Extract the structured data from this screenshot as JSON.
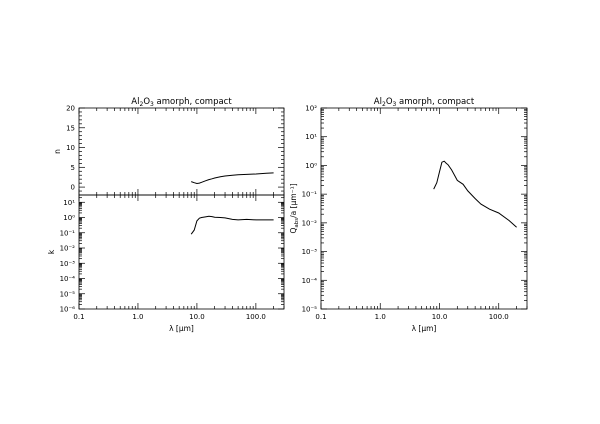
{
  "chart_data": [
    {
      "type": "line",
      "panel": "n",
      "title": "Al2O3 amorph, compact",
      "title_parts": {
        "pre": "Al",
        "sub1": "2",
        "mid": "O",
        "sub2": "3",
        "post": " amorph, compact"
      },
      "xlabel": "λ [μm]",
      "ylabel": "n",
      "xscale": "log",
      "yscale": "linear",
      "xlim": [
        0.1,
        300
      ],
      "ylim": [
        -2,
        20
      ],
      "xticks": [
        "0.1",
        "1.0",
        "10.0",
        "100.0"
      ],
      "yticks": [
        "0",
        "5",
        "10",
        "15",
        "20"
      ],
      "series": [
        {
          "x": [
            8,
            9,
            10,
            11,
            12,
            14,
            16,
            18,
            20,
            25,
            30,
            40,
            50,
            70,
            100,
            150,
            200
          ],
          "y": [
            1.4,
            1.1,
            0.9,
            1.0,
            1.2,
            1.6,
            1.9,
            2.1,
            2.3,
            2.6,
            2.8,
            3.0,
            3.1,
            3.2,
            3.3,
            3.5,
            3.6
          ]
        }
      ]
    },
    {
      "type": "line",
      "panel": "k",
      "xlabel": "λ [μm]",
      "ylabel": "k",
      "xscale": "log",
      "yscale": "log",
      "xlim": [
        0.1,
        300
      ],
      "ylim": [
        1e-06,
        30
      ],
      "xticks": [
        "0.1",
        "1.0",
        "10.0",
        "100.0"
      ],
      "yticks": [
        "10¹",
        "10⁰",
        "10⁻¹",
        "10⁻²",
        "10⁻³",
        "10⁻⁴",
        "10⁻⁵",
        "10⁻⁶"
      ],
      "series": [
        {
          "x": [
            8,
            9,
            10,
            11,
            12,
            14,
            16,
            18,
            20,
            25,
            30,
            40,
            50,
            70,
            100,
            150,
            200
          ],
          "y": [
            0.08,
            0.15,
            0.6,
            0.9,
            1.0,
            1.1,
            1.2,
            1.15,
            1.05,
            1.0,
            0.95,
            0.75,
            0.7,
            0.75,
            0.7,
            0.7,
            0.7
          ]
        }
      ]
    },
    {
      "type": "line",
      "panel": "qabs",
      "title": "Al2O3 amorph, compact",
      "title_parts": {
        "pre": "Al",
        "sub1": "2",
        "mid": "O",
        "sub2": "3",
        "post": " amorph, compact"
      },
      "xlabel": "λ [μm]",
      "ylabel": "Qabs/a [μm⁻¹]",
      "ylabel_parts": {
        "pre": "Q",
        "sub": "abs",
        "post": "/a [μm⁻¹]"
      },
      "xscale": "log",
      "yscale": "log",
      "xlim": [
        0.1,
        300
      ],
      "ylim": [
        1e-05,
        100
      ],
      "xticks": [
        "0.1",
        "1.0",
        "10.0",
        "100.0"
      ],
      "yticks": [
        "10²",
        "10¹",
        "10⁰",
        "10⁻¹",
        "10⁻²",
        "10⁻³",
        "10⁻⁴",
        "10⁻⁵"
      ],
      "series": [
        {
          "x": [
            8,
            9,
            10,
            11,
            12,
            13,
            14,
            16,
            18,
            20,
            25,
            30,
            40,
            50,
            70,
            100,
            150,
            200
          ],
          "y": [
            0.15,
            0.25,
            0.6,
            1.3,
            1.4,
            1.2,
            1.05,
            0.7,
            0.45,
            0.3,
            0.22,
            0.13,
            0.07,
            0.045,
            0.03,
            0.022,
            0.012,
            0.007
          ]
        }
      ]
    }
  ]
}
